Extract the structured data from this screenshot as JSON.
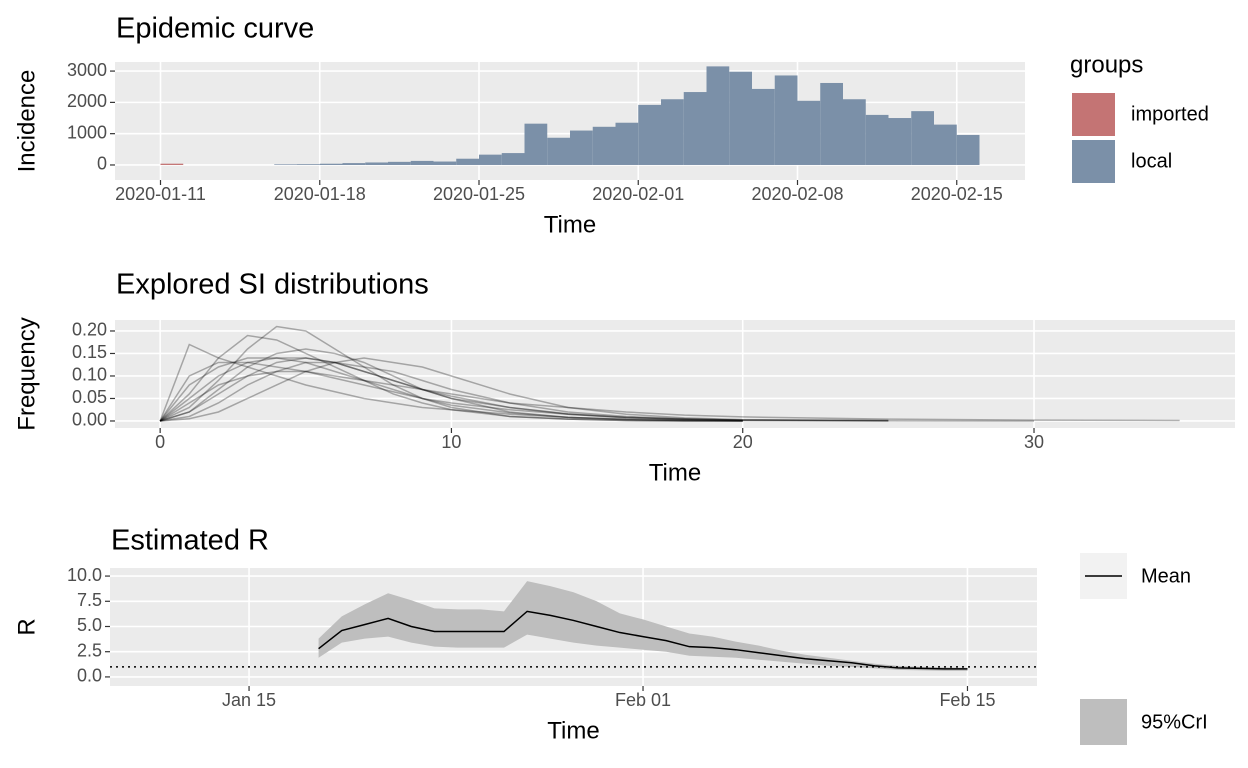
{
  "chart_data": [
    {
      "type": "bar",
      "stacked": true,
      "title": "Epidemic curve",
      "x_label": "Time",
      "y_label": "Incidence",
      "x": [
        "2020-01-11",
        "2020-01-12",
        "2020-01-13",
        "2020-01-14",
        "2020-01-15",
        "2020-01-16",
        "2020-01-17",
        "2020-01-18",
        "2020-01-19",
        "2020-01-20",
        "2020-01-21",
        "2020-01-22",
        "2020-01-23",
        "2020-01-24",
        "2020-01-25",
        "2020-01-26",
        "2020-01-27",
        "2020-01-28",
        "2020-01-29",
        "2020-01-30",
        "2020-01-31",
        "2020-02-01",
        "2020-02-02",
        "2020-02-03",
        "2020-02-04",
        "2020-02-05",
        "2020-02-06",
        "2020-02-07",
        "2020-02-08",
        "2020-02-09",
        "2020-02-10",
        "2020-02-11",
        "2020-02-12",
        "2020-02-13",
        "2020-02-14",
        "2020-02-15"
      ],
      "series": [
        {
          "name": "imported",
          "color": "#c47474",
          "values": [
            41,
            0,
            0,
            0,
            0,
            0,
            0,
            0,
            0,
            0,
            0,
            0,
            0,
            0,
            0,
            0,
            0,
            0,
            0,
            0,
            0,
            0,
            0,
            0,
            0,
            0,
            0,
            0,
            0,
            0,
            0,
            0,
            0,
            0,
            0,
            0
          ]
        },
        {
          "name": "local",
          "color": "#7b90a8",
          "values": [
            0,
            0,
            0,
            0,
            0,
            20,
            25,
            40,
            60,
            80,
            100,
            130,
            110,
            200,
            330,
            380,
            1320,
            870,
            1100,
            1220,
            1350,
            1920,
            2100,
            2330,
            3150,
            2980,
            2430,
            2860,
            2050,
            2620,
            2100,
            1600,
            1500,
            1720,
            1290,
            960
          ]
        }
      ],
      "legend_title": "groups",
      "xlim": [
        "2020-01-09",
        "2020-02-18"
      ],
      "xticks": [
        "2020-01-11",
        "2020-01-18",
        "2020-01-25",
        "2020-02-01",
        "2020-02-08",
        "2020-02-15"
      ],
      "ylim": [
        -480,
        3290
      ],
      "yticks": [
        0,
        1000,
        2000,
        3000
      ],
      "grid": true
    },
    {
      "type": "line",
      "title": "Explored SI distributions",
      "x_label": "Time",
      "y_label": "Frequency",
      "color": "rgba(0,0,0,0.3)",
      "x": [
        0,
        1,
        2,
        3,
        4,
        5,
        6,
        7,
        8,
        9,
        10,
        12,
        14,
        16,
        18,
        20,
        25,
        30,
        35
      ],
      "series": [
        {
          "values": [
            0,
            0.17,
            0.14,
            0.12,
            0.1,
            0.08,
            0.065,
            0.05,
            0.04,
            0.03,
            0.025,
            0.015,
            0.008,
            0.004,
            0.002,
            0.001,
            null,
            null,
            null
          ]
        },
        {
          "values": [
            0,
            0.03,
            0.09,
            0.16,
            0.21,
            0.2,
            0.16,
            0.12,
            0.08,
            0.05,
            0.03,
            0.01,
            0.004,
            0.001,
            0,
            0,
            null,
            null,
            null
          ]
        },
        {
          "values": [
            0,
            0.02,
            0.06,
            0.1,
            0.13,
            0.14,
            0.13,
            0.11,
            0.09,
            0.07,
            0.05,
            0.03,
            0.015,
            0.007,
            0.003,
            0.001,
            0,
            null,
            null
          ]
        },
        {
          "values": [
            0,
            0.01,
            0.04,
            0.08,
            0.11,
            0.13,
            0.13,
            0.12,
            0.11,
            0.09,
            0.07,
            0.04,
            0.02,
            0.01,
            0.005,
            0.002,
            0.001,
            null,
            null
          ]
        },
        {
          "values": [
            0,
            0.1,
            0.13,
            0.13,
            0.12,
            0.11,
            0.095,
            0.08,
            0.065,
            0.05,
            0.04,
            0.025,
            0.015,
            0.008,
            0.004,
            0.002,
            null,
            null,
            null
          ]
        },
        {
          "values": [
            0,
            0.005,
            0.02,
            0.05,
            0.08,
            0.11,
            0.13,
            0.14,
            0.13,
            0.12,
            0.1,
            0.06,
            0.03,
            0.015,
            0.007,
            0.003,
            0.001,
            null,
            null
          ]
        },
        {
          "values": [
            0,
            0.06,
            0.14,
            0.19,
            0.18,
            0.15,
            0.12,
            0.09,
            0.06,
            0.04,
            0.025,
            0.01,
            0.004,
            0.001,
            0,
            0,
            null,
            null,
            null
          ]
        },
        {
          "values": [
            0,
            0.04,
            0.08,
            0.1,
            0.11,
            0.11,
            0.1,
            0.09,
            0.08,
            0.07,
            0.06,
            0.04,
            0.03,
            0.02,
            0.013,
            0.009,
            0.004,
            0.002,
            0.001
          ]
        },
        {
          "values": [
            0,
            0.08,
            0.12,
            0.14,
            0.14,
            0.13,
            0.11,
            0.09,
            0.07,
            0.05,
            0.035,
            0.018,
            0.008,
            0.003,
            0.001,
            0,
            null,
            null,
            null
          ]
        },
        {
          "values": [
            0,
            0.02,
            0.07,
            0.12,
            0.15,
            0.16,
            0.15,
            0.13,
            0.1,
            0.07,
            0.05,
            0.02,
            0.008,
            0.003,
            0.001,
            0,
            null,
            null,
            null
          ]
        },
        {
          "values": [
            0,
            0.05,
            0.1,
            0.13,
            0.14,
            0.14,
            0.13,
            0.11,
            0.09,
            0.07,
            0.055,
            0.03,
            0.016,
            0.008,
            0.004,
            0.002,
            0.0005,
            0,
            null
          ]
        }
      ],
      "xlim": [
        -1.55,
        36.9
      ],
      "xticks": [
        0,
        10,
        20,
        30
      ],
      "ylim": [
        -0.0156,
        0.2244
      ],
      "yticks": [
        {
          "value": 0,
          "label": "0.00"
        },
        {
          "value": 0.05,
          "label": "0.05"
        },
        {
          "value": 0.1,
          "label": "0.10"
        },
        {
          "value": 0.15,
          "label": "0.15"
        },
        {
          "value": 0.2,
          "label": "0.20"
        }
      ],
      "grid": true
    },
    {
      "type": "line",
      "title": "Estimated R",
      "x_label": "Time",
      "y_label": "R",
      "x": [
        "Jan 18",
        "Jan 19",
        "Jan 20",
        "Jan 21",
        "Jan 22",
        "Jan 23",
        "Jan 24",
        "Jan 25",
        "Jan 26",
        "Jan 27",
        "Jan 28",
        "Jan 29",
        "Jan 30",
        "Jan 31",
        "Feb 01",
        "Feb 02",
        "Feb 03",
        "Feb 04",
        "Feb 05",
        "Feb 06",
        "Feb 07",
        "Feb 08",
        "Feb 09",
        "Feb 10",
        "Feb 11",
        "Feb 12",
        "Feb 13",
        "Feb 14",
        "Feb 15"
      ],
      "series": [
        {
          "name": "Mean",
          "color": "#000000",
          "values": [
            2.8,
            4.6,
            5.2,
            5.8,
            5.0,
            4.5,
            4.5,
            4.5,
            4.5,
            6.5,
            6.1,
            5.6,
            5.0,
            4.4,
            4.0,
            3.6,
            3.0,
            2.9,
            2.7,
            2.4,
            2.1,
            1.8,
            1.6,
            1.4,
            1.1,
            0.9,
            0.85,
            0.8,
            0.8
          ]
        }
      ],
      "band": {
        "name": "95%CrI",
        "color": "#bebebe",
        "upper": [
          3.8,
          6.0,
          7.2,
          8.3,
          7.6,
          6.8,
          6.7,
          6.7,
          6.5,
          9.5,
          9.0,
          8.4,
          7.5,
          6.3,
          5.7,
          5.0,
          4.3,
          4.0,
          3.5,
          3.1,
          2.6,
          2.2,
          1.9,
          1.6,
          1.3,
          1.1,
          1.0,
          0.95,
          0.9
        ],
        "lower": [
          1.9,
          3.4,
          3.8,
          4.0,
          3.4,
          3.0,
          2.9,
          2.9,
          2.9,
          4.2,
          3.8,
          3.4,
          3.1,
          2.9,
          2.7,
          2.5,
          2.1,
          2.0,
          1.9,
          1.7,
          1.5,
          1.3,
          1.1,
          1.0,
          0.85,
          0.7,
          0.65,
          0.6,
          0.6
        ]
      },
      "hline": 1,
      "xlim": [
        "Jan 09",
        "Feb 18"
      ],
      "xticks": [
        "Jan 15",
        "Feb 01",
        "Feb 15"
      ],
      "ylim": [
        -0.9,
        10.8
      ],
      "yticks": [
        {
          "value": 0,
          "label": "0.0"
        },
        {
          "value": 2.5,
          "label": "2.5"
        },
        {
          "value": 5,
          "label": "5.0"
        },
        {
          "value": 7.5,
          "label": "7.5"
        },
        {
          "value": 10,
          "label": "10.0"
        }
      ],
      "grid": true
    }
  ]
}
